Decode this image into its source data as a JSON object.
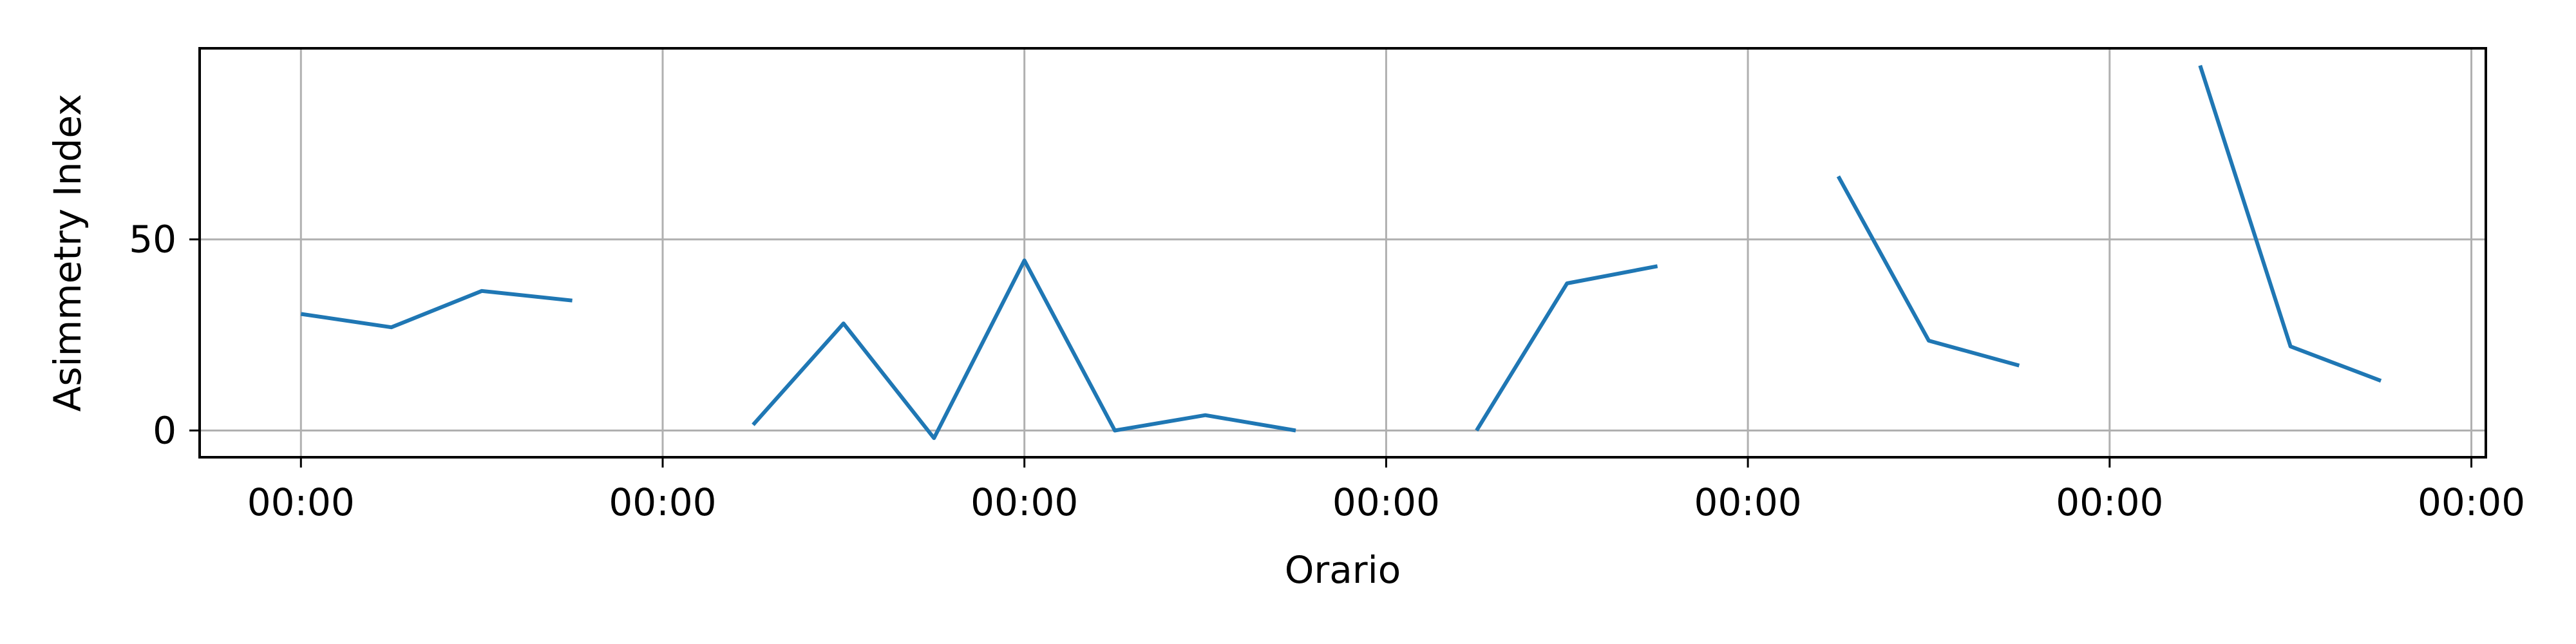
{
  "chart_data": {
    "type": "line",
    "title": "",
    "xlabel": "Orario",
    "ylabel": "Asimmetry Index",
    "x_ticks": [
      "00:00",
      "00:00",
      "00:00",
      "00:00",
      "00:00",
      "00:00",
      "00:00"
    ],
    "y_ticks": [
      0,
      50
    ],
    "xlim": [
      -0.28,
      6.04
    ],
    "ylim": [
      -7,
      100
    ],
    "grid": true,
    "legend": "none",
    "line_color": "#1f77b4",
    "series": [
      {
        "segments": [
          {
            "x": [
              0.0,
              0.25,
              0.5,
              0.75
            ],
            "y": [
              30.5,
              27,
              36.5,
              34
            ]
          },
          {
            "x": [
              1.25,
              1.5,
              1.75,
              2.0,
              2.25,
              2.5,
              2.75
            ],
            "y": [
              1.5,
              28,
              -2,
              44.5,
              0,
              4,
              0
            ]
          },
          {
            "x": [
              3.25,
              3.5,
              3.75
            ],
            "y": [
              0,
              38.5,
              43
            ]
          },
          {
            "x": [
              4.25,
              4.5,
              4.75
            ],
            "y": [
              66.5,
              23.5,
              17
            ]
          },
          {
            "x": [
              5.25,
              5.5,
              5.75
            ],
            "y": [
              95.5,
              22,
              13
            ]
          }
        ]
      }
    ]
  }
}
